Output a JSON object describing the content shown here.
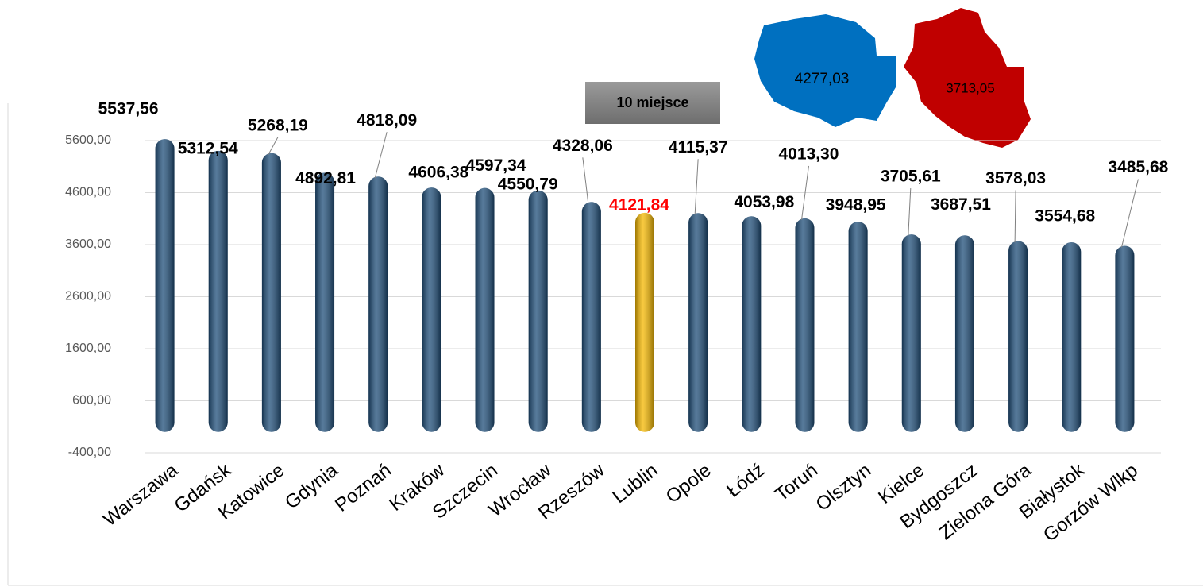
{
  "chart_data": {
    "type": "bar",
    "categories": [
      "Warszawa",
      "Gdańsk",
      "Katowice",
      "Gdynia",
      "Poznań",
      "Kraków",
      "Szczecin",
      "Wrocław",
      "Rzeszów",
      "Lublin",
      "Opole",
      "Łódź",
      "Toruń",
      "Olsztyn",
      "Kielce",
      "Bydgoszcz",
      "Zielona Góra",
      "Białystok",
      "Gorzów Wlkp"
    ],
    "values": [
      5537.56,
      5312.54,
      5268.19,
      4892.81,
      4818.09,
      4606.38,
      4597.34,
      4550.79,
      4328.06,
      4121.84,
      4115.37,
      4053.98,
      4013.3,
      3948.95,
      3705.61,
      3687.51,
      3578.03,
      3554.68,
      3485.68
    ],
    "value_labels": [
      "5537,56",
      "5312,54",
      "5268,19",
      "4892,81",
      "4818,09",
      "4606,38",
      "4597,34",
      "4550,79",
      "4328,06",
      "4121,84",
      "4115,37",
      "4053,98",
      "4013,30",
      "3948,95",
      "3705,61",
      "3687,51",
      "3578,03",
      "3554,68",
      "3485,68"
    ],
    "colors": [
      "#1f4e79",
      "#1f4e79",
      "#1f4e79",
      "#1f4e79",
      "#1f4e79",
      "#1f4e79",
      "#1f4e79",
      "#1f4e79",
      "#1f4e79",
      "#f5b800",
      "#1f4e79",
      "#1f4e79",
      "#1f4e79",
      "#1f4e79",
      "#1f4e79",
      "#1f4e79",
      "#1f4e79",
      "#1f4e79",
      "#1f4e79"
    ],
    "ylim": [
      -400,
      5600
    ],
    "yticks": [
      {
        "value": -400,
        "label": "-400,00"
      },
      {
        "value": 600,
        "label": "600,00"
      },
      {
        "value": 1600,
        "label": "1600,00"
      },
      {
        "value": 2600,
        "label": "2600,00"
      },
      {
        "value": 3600,
        "label": "3600,00"
      },
      {
        "value": 4600,
        "label": "4600,00"
      },
      {
        "value": 5600,
        "label": "5600,00"
      }
    ],
    "grid": true,
    "annotations": {
      "rank": "10 miejsce",
      "poland": "4277,03",
      "region": "3713,05"
    }
  }
}
